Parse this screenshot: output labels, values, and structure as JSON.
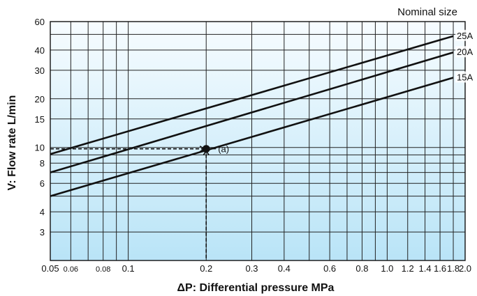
{
  "chart_data": {
    "type": "line",
    "title": "",
    "legend_title": "Nominal size",
    "xlabel": "ΔP: Differential pressure MPa",
    "ylabel": "V: Flow rate L/min",
    "x_scale": "log",
    "y_scale": "log",
    "xlim": [
      0.05,
      2.0
    ],
    "ylim": [
      2.0,
      60
    ],
    "x_ticks": [
      {
        "value": 0.05,
        "label": "0.05"
      },
      {
        "value": 0.06,
        "label": "0.06"
      },
      {
        "value": 0.08,
        "label": "0.08"
      },
      {
        "value": 0.1,
        "label": "0.1"
      },
      {
        "value": 0.2,
        "label": "0.2"
      },
      {
        "value": 0.3,
        "label": "0.3"
      },
      {
        "value": 0.4,
        "label": "0.4"
      },
      {
        "value": 0.6,
        "label": "0.6"
      },
      {
        "value": 0.8,
        "label": "0.8"
      },
      {
        "value": 1.0,
        "label": "1.0"
      },
      {
        "value": 1.2,
        "label": "1.2"
      },
      {
        "value": 1.4,
        "label": "1.4"
      },
      {
        "value": 1.6,
        "label": "1.6"
      },
      {
        "value": 1.8,
        "label": "1.8"
      },
      {
        "value": 2.0,
        "label": "2.0"
      }
    ],
    "y_ticks": [
      {
        "value": 3,
        "label": "3"
      },
      {
        "value": 4,
        "label": "4"
      },
      {
        "value": 6,
        "label": "6"
      },
      {
        "value": 8,
        "label": "8"
      },
      {
        "value": 10,
        "label": "10"
      },
      {
        "value": 15,
        "label": "15"
      },
      {
        "value": 20,
        "label": "20"
      },
      {
        "value": 30,
        "label": "30"
      },
      {
        "value": 40,
        "label": "40"
      },
      {
        "value": 60,
        "label": "60"
      }
    ],
    "x_grid": [
      0.05,
      0.06,
      0.07,
      0.08,
      0.09,
      0.1,
      0.2,
      0.3,
      0.4,
      0.5,
      0.6,
      0.7,
      0.8,
      0.9,
      1.0,
      1.2,
      1.4,
      1.6,
      1.8,
      2.0
    ],
    "y_grid": [
      2,
      3,
      4,
      5,
      6,
      7,
      8,
      9,
      10,
      15,
      20,
      30,
      40,
      50,
      60
    ],
    "grid": true,
    "legend_position": "top-right",
    "series": [
      {
        "name": "25A",
        "x": [
          0.05,
          1.8
        ],
        "y": [
          9.1,
          48.8
        ]
      },
      {
        "name": "20A",
        "x": [
          0.05,
          1.8
        ],
        "y": [
          7.0,
          38.7
        ]
      },
      {
        "name": "15A",
        "x": [
          0.05,
          1.8
        ],
        "y": [
          5.0,
          27.0
        ]
      }
    ],
    "annotations": [
      {
        "label": "(a)",
        "x": 0.2,
        "y": 9.8
      }
    ],
    "colors": {
      "background_top": "#f7fcff",
      "background_bottom": "#b9e4f7",
      "line": "#111111"
    }
  }
}
